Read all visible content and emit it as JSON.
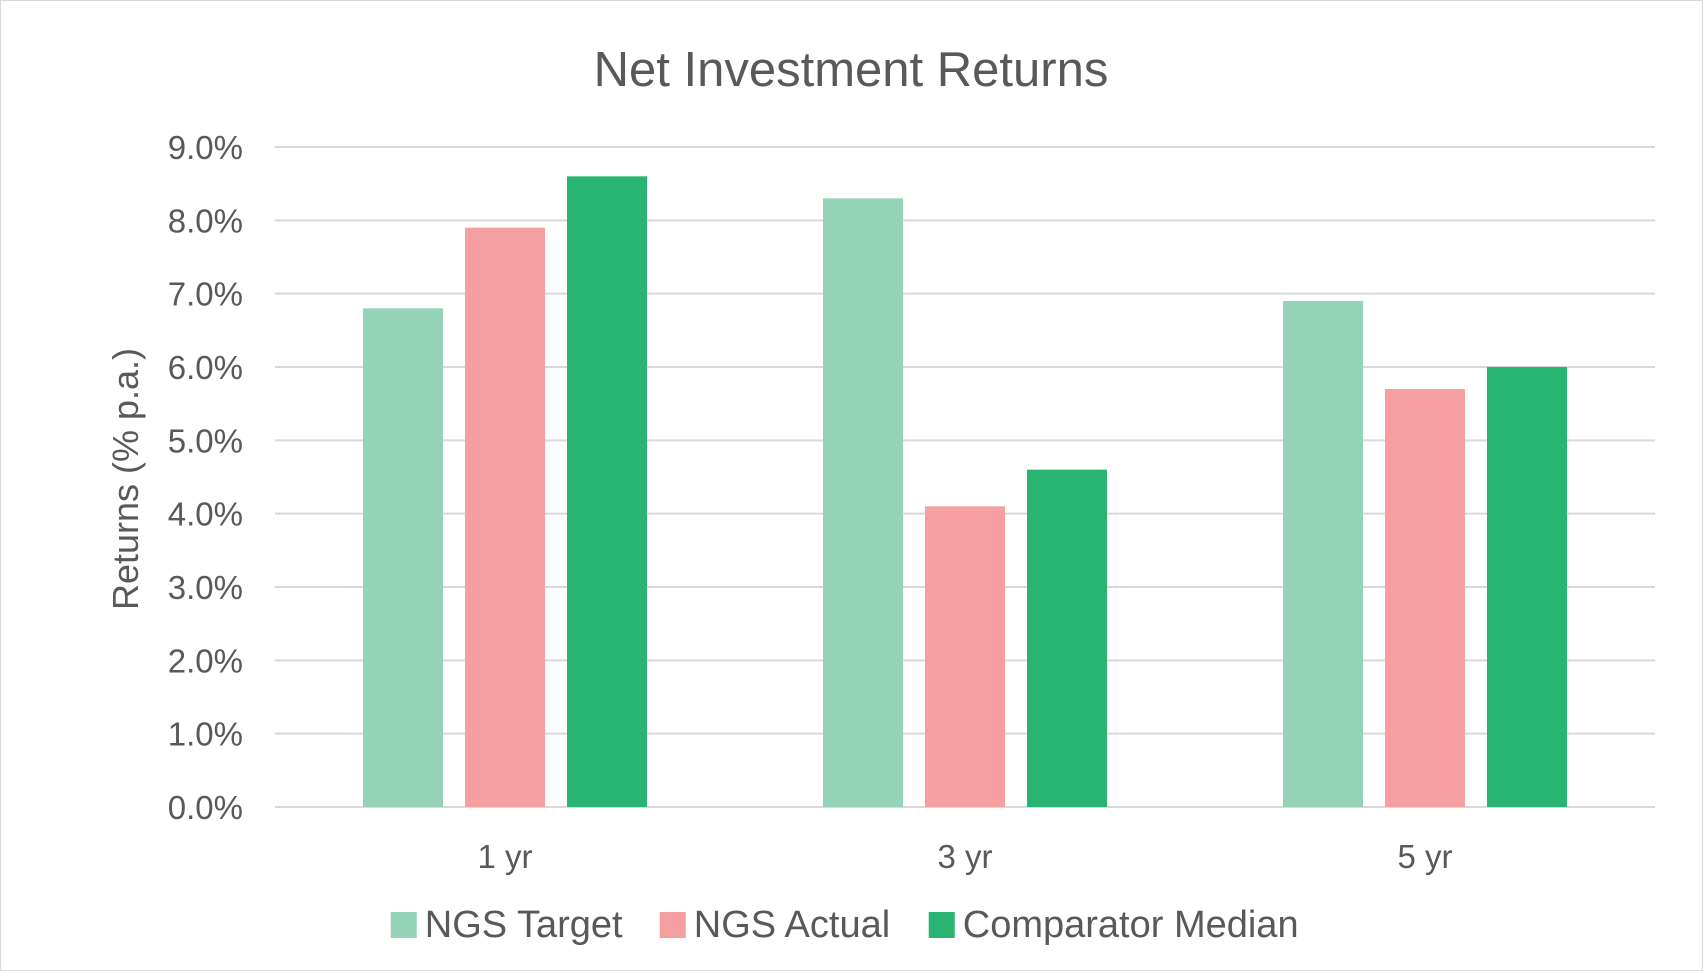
{
  "chart_data": {
    "type": "bar",
    "title": "Net Investment Returns",
    "xlabel": "",
    "ylabel": "Returns (% p.a.)",
    "ylim": [
      0,
      9
    ],
    "ytick_step": 1,
    "ytick_format": "0.0%",
    "categories": [
      "1 yr",
      "3 yr",
      "5 yr"
    ],
    "series": [
      {
        "name": "NGS Target",
        "color": "#95d3b8",
        "values": [
          6.8,
          8.3,
          6.9
        ]
      },
      {
        "name": "NGS Actual",
        "color": "#f59fa1",
        "values": [
          7.9,
          4.1,
          5.7
        ]
      },
      {
        "name": "Comparator Median",
        "color": "#29b571",
        "values": [
          8.6,
          4.6,
          6.0
        ]
      }
    ],
    "grid": true,
    "legend_position": "bottom"
  }
}
